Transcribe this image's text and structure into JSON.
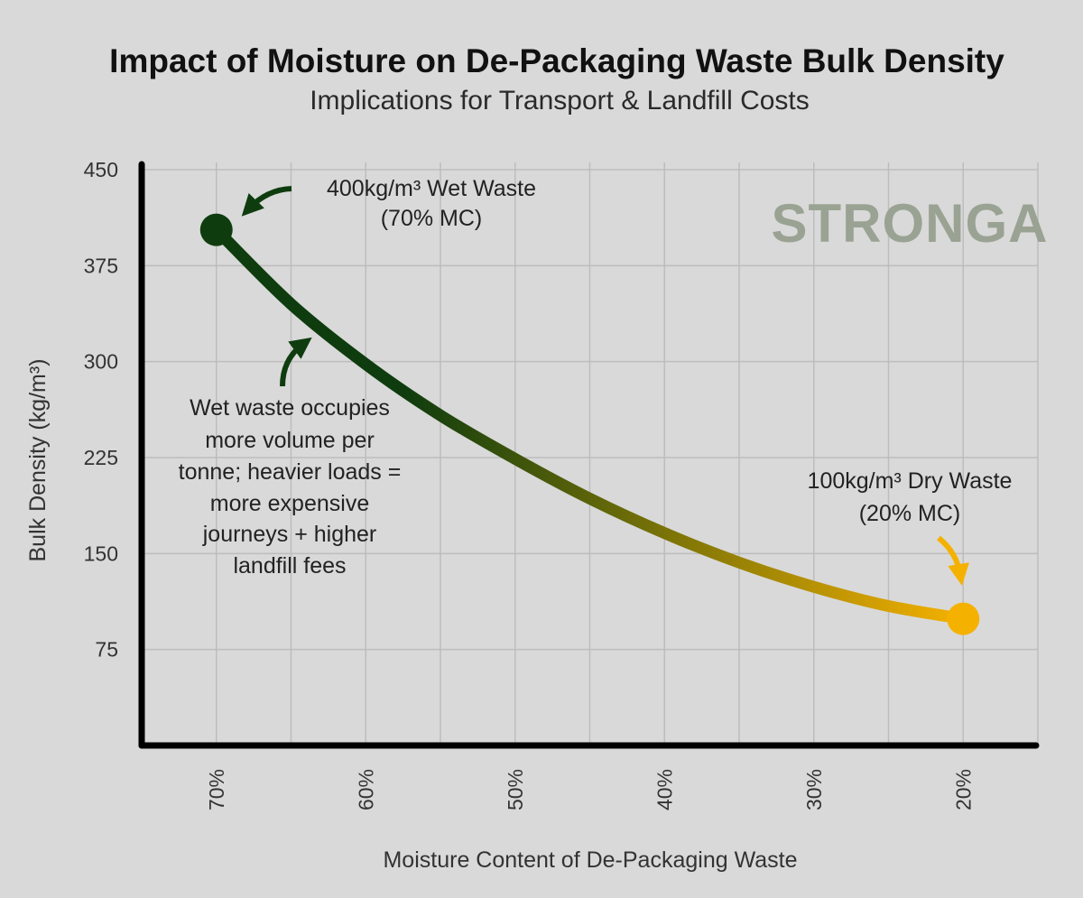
{
  "chart_data": {
    "type": "line",
    "title": "Impact of Moisture on De-Packaging Waste Bulk Density",
    "subtitle": "Implications for Transport & Landfill Costs",
    "xlabel": "Moisture Content of De-Packaging Waste",
    "ylabel": "Bulk Density (kg/m³)",
    "x_reversed": true,
    "xlim": [
      75,
      15
    ],
    "ylim": [
      0,
      450
    ],
    "x_ticks": [
      70,
      60,
      50,
      40,
      30,
      20
    ],
    "x_tick_labels": [
      "70%",
      "60%",
      "50%",
      "40%",
      "30%",
      "20%"
    ],
    "y_ticks": [
      75,
      150,
      225,
      300,
      375,
      450
    ],
    "y_tick_labels": [
      "75",
      "150",
      "225",
      "300",
      "375",
      "450"
    ],
    "x_gridlines": [
      75,
      70,
      65,
      60,
      55,
      50,
      45,
      40,
      35,
      30,
      25,
      20,
      15
    ],
    "grid": true,
    "series": [
      {
        "x": [
          70,
          65,
          60,
          55,
          50,
          45,
          40,
          35,
          30,
          25,
          20
        ],
        "y": [
          403,
          345,
          298,
          258,
          224,
          193,
          166,
          143,
          124,
          109,
          99
        ],
        "gradient_colors": [
          "#0e3c0e",
          "#f5b100"
        ]
      }
    ],
    "markers": [
      {
        "x": 70,
        "y": 403,
        "color": "#0e3c0e"
      },
      {
        "x": 20,
        "y": 99,
        "color": "#f5b100"
      }
    ],
    "annotations": {
      "wet_line1": "400kg/m³ Wet Waste",
      "wet_line2": "(70% MC)",
      "dry_line1": "100kg/m³ Dry Waste",
      "dry_line2": "(20% MC)",
      "note_lines": [
        "Wet waste occupies",
        "more volume per",
        "tonne; heavier loads =",
        "more expensive",
        "journeys + higher",
        "landfill fees"
      ]
    },
    "brand": "STRONGA",
    "colors": {
      "background": "#d9d9d9",
      "wet": "#0e3c0e",
      "dry": "#f5b100",
      "grid": "#bdbdbd",
      "axis": "#000000",
      "brand": "#9aa393"
    }
  }
}
